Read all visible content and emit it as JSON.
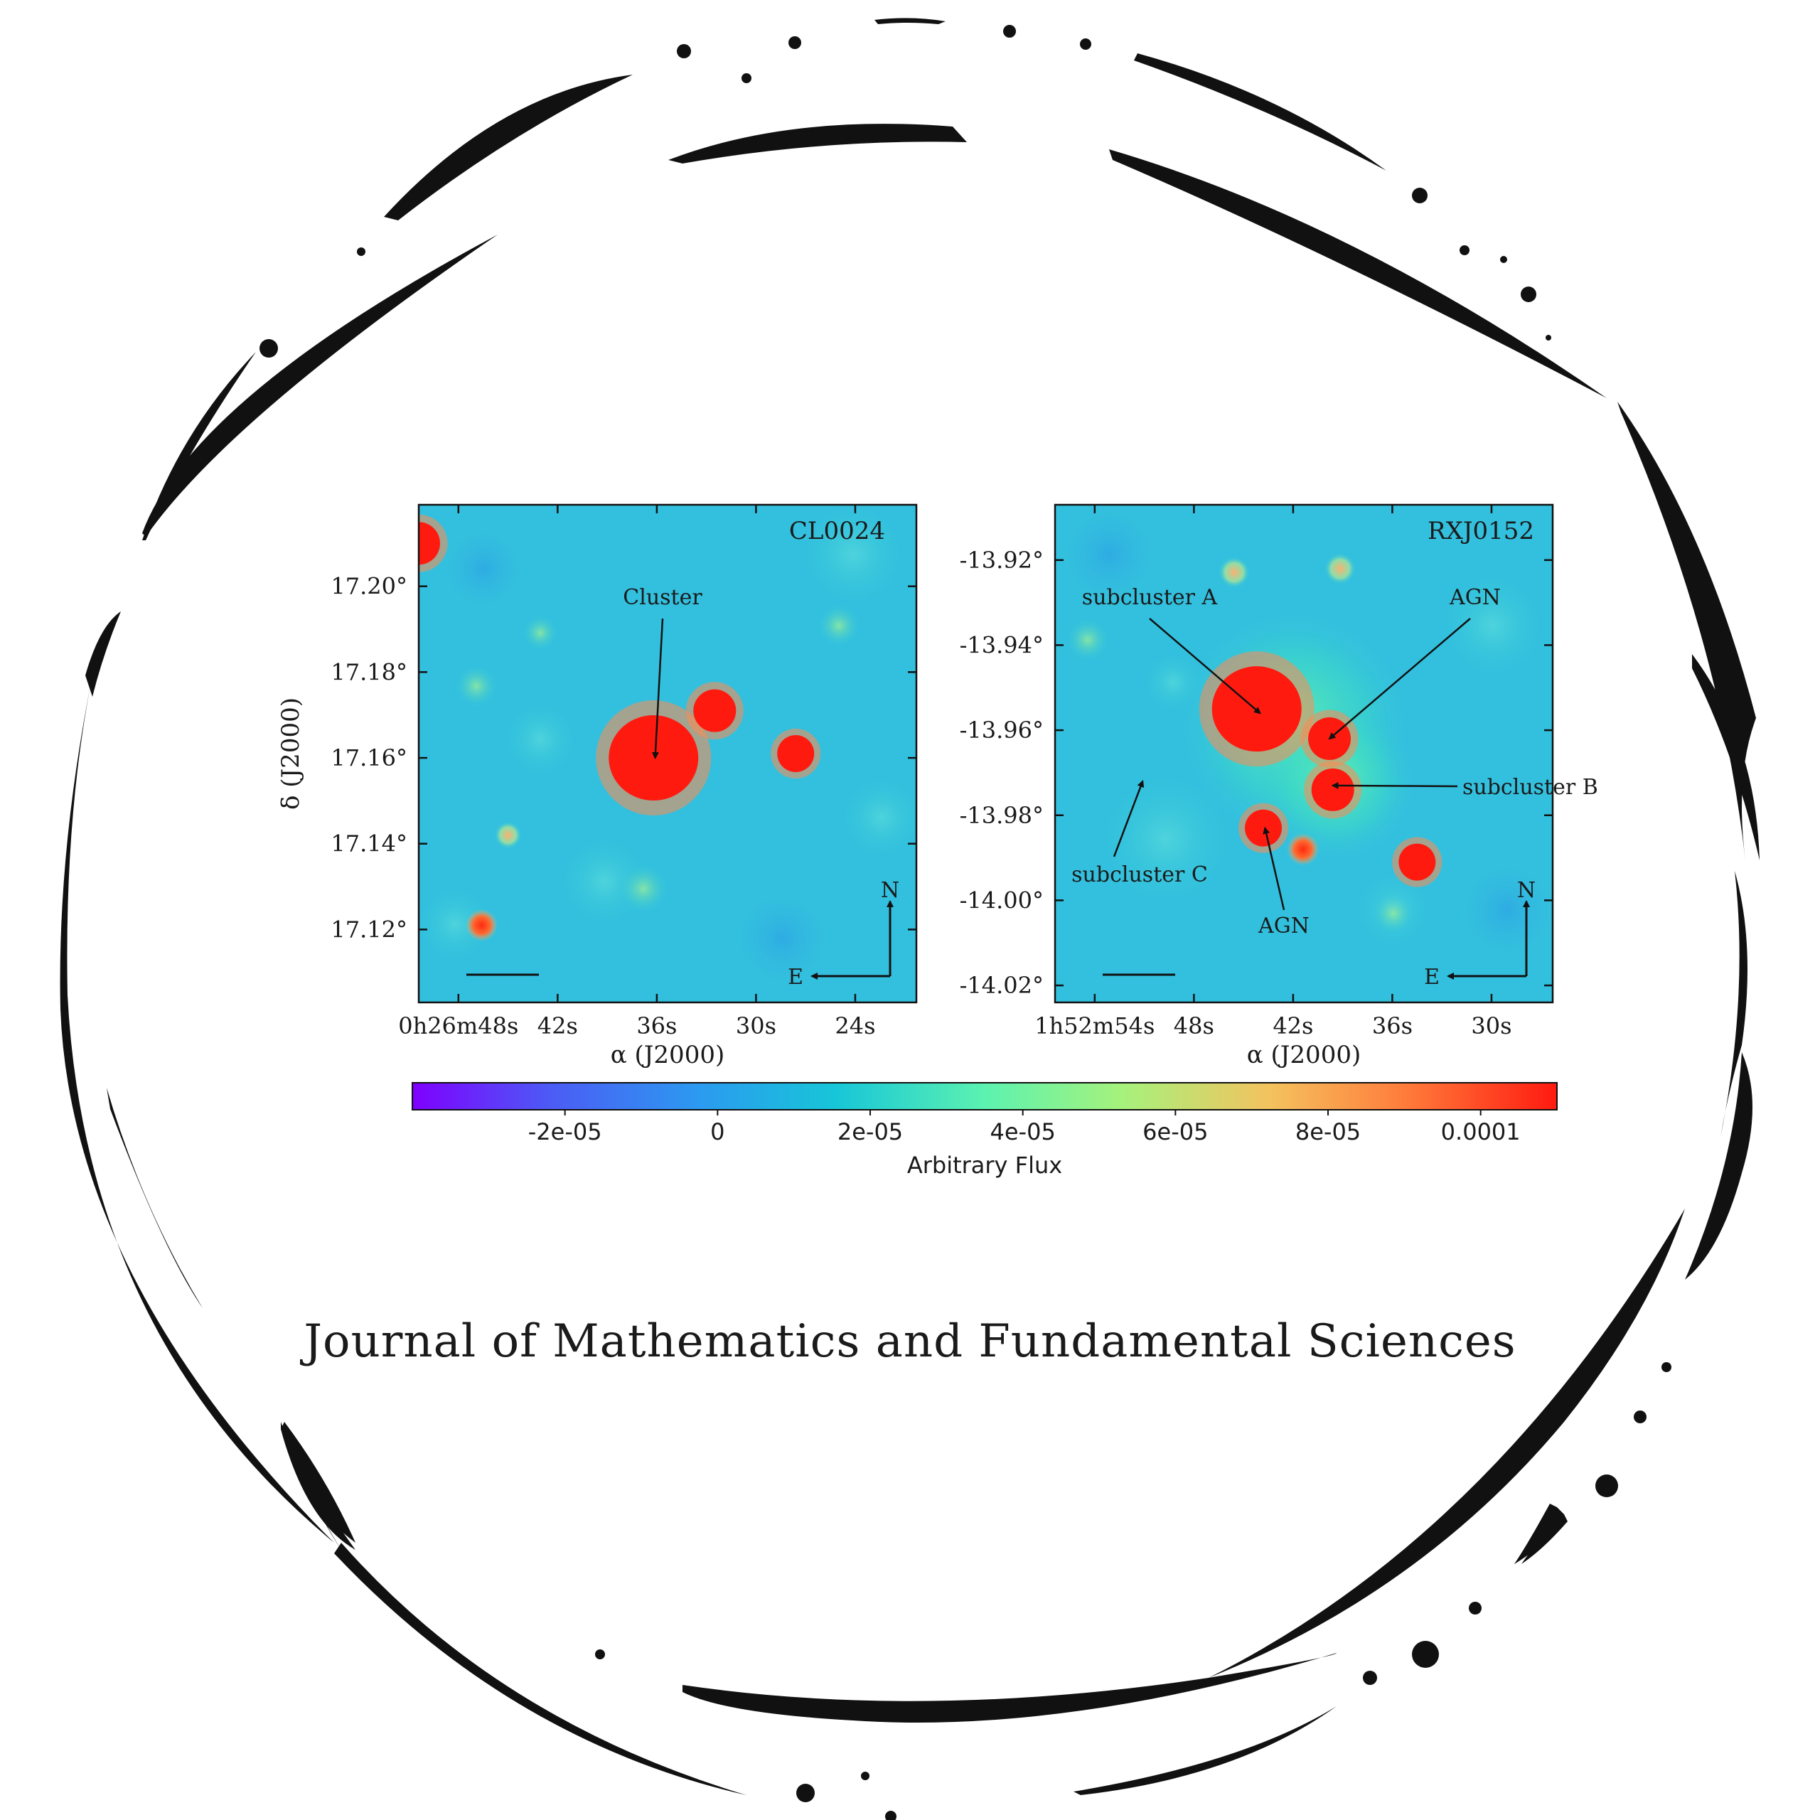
{
  "journal": {
    "title": "Journal of Mathematics and Fundamental Sciences"
  },
  "colors": {
    "ring": "#111111",
    "background": "#ffffff"
  },
  "chart_data": [
    {
      "type": "heatmap",
      "title": "CL0024",
      "xlabel": "α (J2000)",
      "ylabel": "δ (J2000)",
      "x_ticks": [
        "0h26m48s",
        "42s",
        "36s",
        "30s",
        "24s"
      ],
      "y_ticks": [
        "17.20°",
        "17.18°",
        "17.16°",
        "17.14°",
        "17.12°"
      ],
      "y_tick_values": [
        17.2,
        17.18,
        17.16,
        17.14,
        17.12
      ],
      "ylim": [
        17.103,
        17.219
      ],
      "x_tick_values_s": [
        48,
        42,
        36,
        30,
        24
      ],
      "xlim_s": [
        50.4,
        20.3
      ],
      "annotations": [
        {
          "label": "Cluster",
          "points_to": {
            "ra_s": 36.1,
            "dec": 17.16
          }
        }
      ],
      "sources": [
        {
          "ra_s": 36.2,
          "dec": 17.16,
          "flux": 0.0001,
          "size": "large"
        },
        {
          "ra_s": 32.5,
          "dec": 17.171,
          "flux": 0.0001,
          "size": "medium"
        },
        {
          "ra_s": 27.6,
          "dec": 17.161,
          "flux": 0.0001,
          "size": "small"
        },
        {
          "ra_s": 50.4,
          "dec": 17.21,
          "flux": 0.0001,
          "size": "medium"
        },
        {
          "ra_s": 46.6,
          "dec": 17.121,
          "flux": 0.0001,
          "size": "tiny"
        },
        {
          "ra_s": 45.0,
          "dec": 17.142,
          "flux": 6e-05,
          "size": "tiny"
        }
      ],
      "compass": {
        "north": "N",
        "east": "E"
      }
    },
    {
      "type": "heatmap",
      "title": "RXJ0152",
      "xlabel": "α (J2000)",
      "ylabel": "",
      "x_ticks": [
        "1h52m54s",
        "48s",
        "42s",
        "36s",
        "30s"
      ],
      "y_ticks": [
        "-13.92°",
        "-13.94°",
        "-13.96°",
        "-13.98°",
        "-14.00°",
        "-14.02°"
      ],
      "y_tick_values": [
        -13.92,
        -13.94,
        -13.96,
        -13.98,
        -14.0,
        -14.02
      ],
      "ylim": [
        -14.024,
        -13.907
      ],
      "x_tick_values_s": [
        54,
        48,
        42,
        36,
        30
      ],
      "xlim_s": [
        56.4,
        26.3
      ],
      "annotations": [
        {
          "label": "subcluster A",
          "points_to": {
            "ra_s": 44.0,
            "dec": -13.956
          }
        },
        {
          "label": "AGN",
          "points_to": {
            "ra_s": 39.8,
            "dec": -13.962
          }
        },
        {
          "label": "subcluster B",
          "points_to": {
            "ra_s": 39.6,
            "dec": -13.973
          }
        },
        {
          "label": "AGN",
          "points_to": {
            "ra_s": 43.7,
            "dec": -13.983
          }
        },
        {
          "label": "subcluster C",
          "points_to": {
            "ra_s": 51.1,
            "dec": -13.972
          }
        }
      ],
      "sources": [
        {
          "ra_s": 44.2,
          "dec": -13.955,
          "flux": 0.0001,
          "size": "large"
        },
        {
          "ra_s": 39.8,
          "dec": -13.962,
          "flux": 0.0001,
          "size": "medium"
        },
        {
          "ra_s": 39.6,
          "dec": -13.974,
          "flux": 0.0001,
          "size": "medium"
        },
        {
          "ra_s": 43.8,
          "dec": -13.983,
          "flux": 0.0001,
          "size": "small"
        },
        {
          "ra_s": 41.4,
          "dec": -13.988,
          "flux": 0.0001,
          "size": "tiny"
        },
        {
          "ra_s": 34.5,
          "dec": -13.991,
          "flux": 0.0001,
          "size": "small"
        }
      ],
      "compass": {
        "north": "N",
        "east": "E"
      }
    }
  ],
  "colorbar": {
    "label": "Arbitrary Flux",
    "ticks": [
      "-2e-05",
      "0",
      "2e-05",
      "4e-05",
      "6e-05",
      "8e-05",
      "0.0001"
    ],
    "tick_values": [
      -2e-05,
      0,
      2e-05,
      4e-05,
      6e-05,
      8e-05,
      0.0001
    ],
    "range": [
      -4e-05,
      0.00011
    ],
    "colormap": "rainbow"
  }
}
